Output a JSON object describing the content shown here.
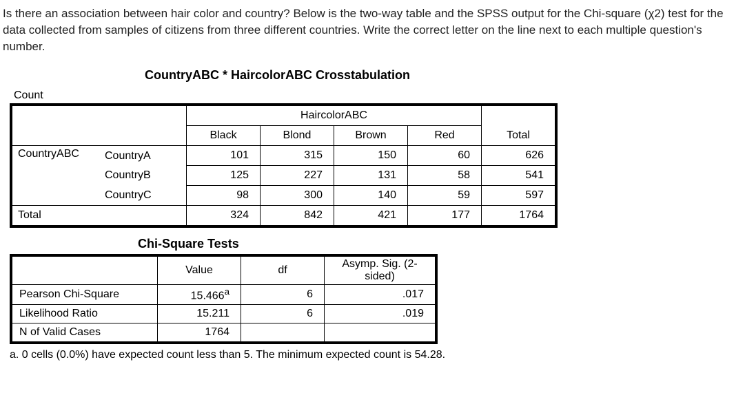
{
  "intro": "Is there an association between hair color and country? Below is the two-way table and the SPSS output for the Chi-square (χ2) test for the data collected from samples of citizens from three different countries. Write the correct letter on the line next to each multiple question's number.",
  "crosstab": {
    "title": "CountryABC * HaircolorABC Crosstabulation",
    "count_label": "Count",
    "col_var": "HaircolorABC",
    "col_levels": [
      "Black",
      "Blond",
      "Brown",
      "Red"
    ],
    "total_label": "Total",
    "row_var": "CountryABC",
    "rows": [
      {
        "label": "CountryA",
        "cells": [
          101,
          315,
          150,
          60
        ],
        "total": 626
      },
      {
        "label": "CountryB",
        "cells": [
          125,
          227,
          131,
          58
        ],
        "total": 541
      },
      {
        "label": "CountryC",
        "cells": [
          98,
          300,
          140,
          59
        ],
        "total": 597
      }
    ],
    "col_totals": [
      324,
      842,
      421,
      177
    ],
    "grand_total": 1764
  },
  "chi": {
    "title": "Chi-Square Tests",
    "headers": {
      "value": "Value",
      "df": "df",
      "sig": "Asymp. Sig. (2-sided)"
    },
    "rows": [
      {
        "label": "Pearson Chi-Square",
        "value": "15.466",
        "sup": "a",
        "df": 6,
        "sig": ".017"
      },
      {
        "label": "Likelihood Ratio",
        "value": "15.211",
        "sup": "",
        "df": 6,
        "sig": ".019"
      },
      {
        "label": "N of Valid Cases",
        "value": "1764",
        "sup": "",
        "df": "",
        "sig": ""
      }
    ],
    "footnote": "a. 0 cells (0.0%) have expected count less than 5. The minimum expected count is 54.28."
  }
}
